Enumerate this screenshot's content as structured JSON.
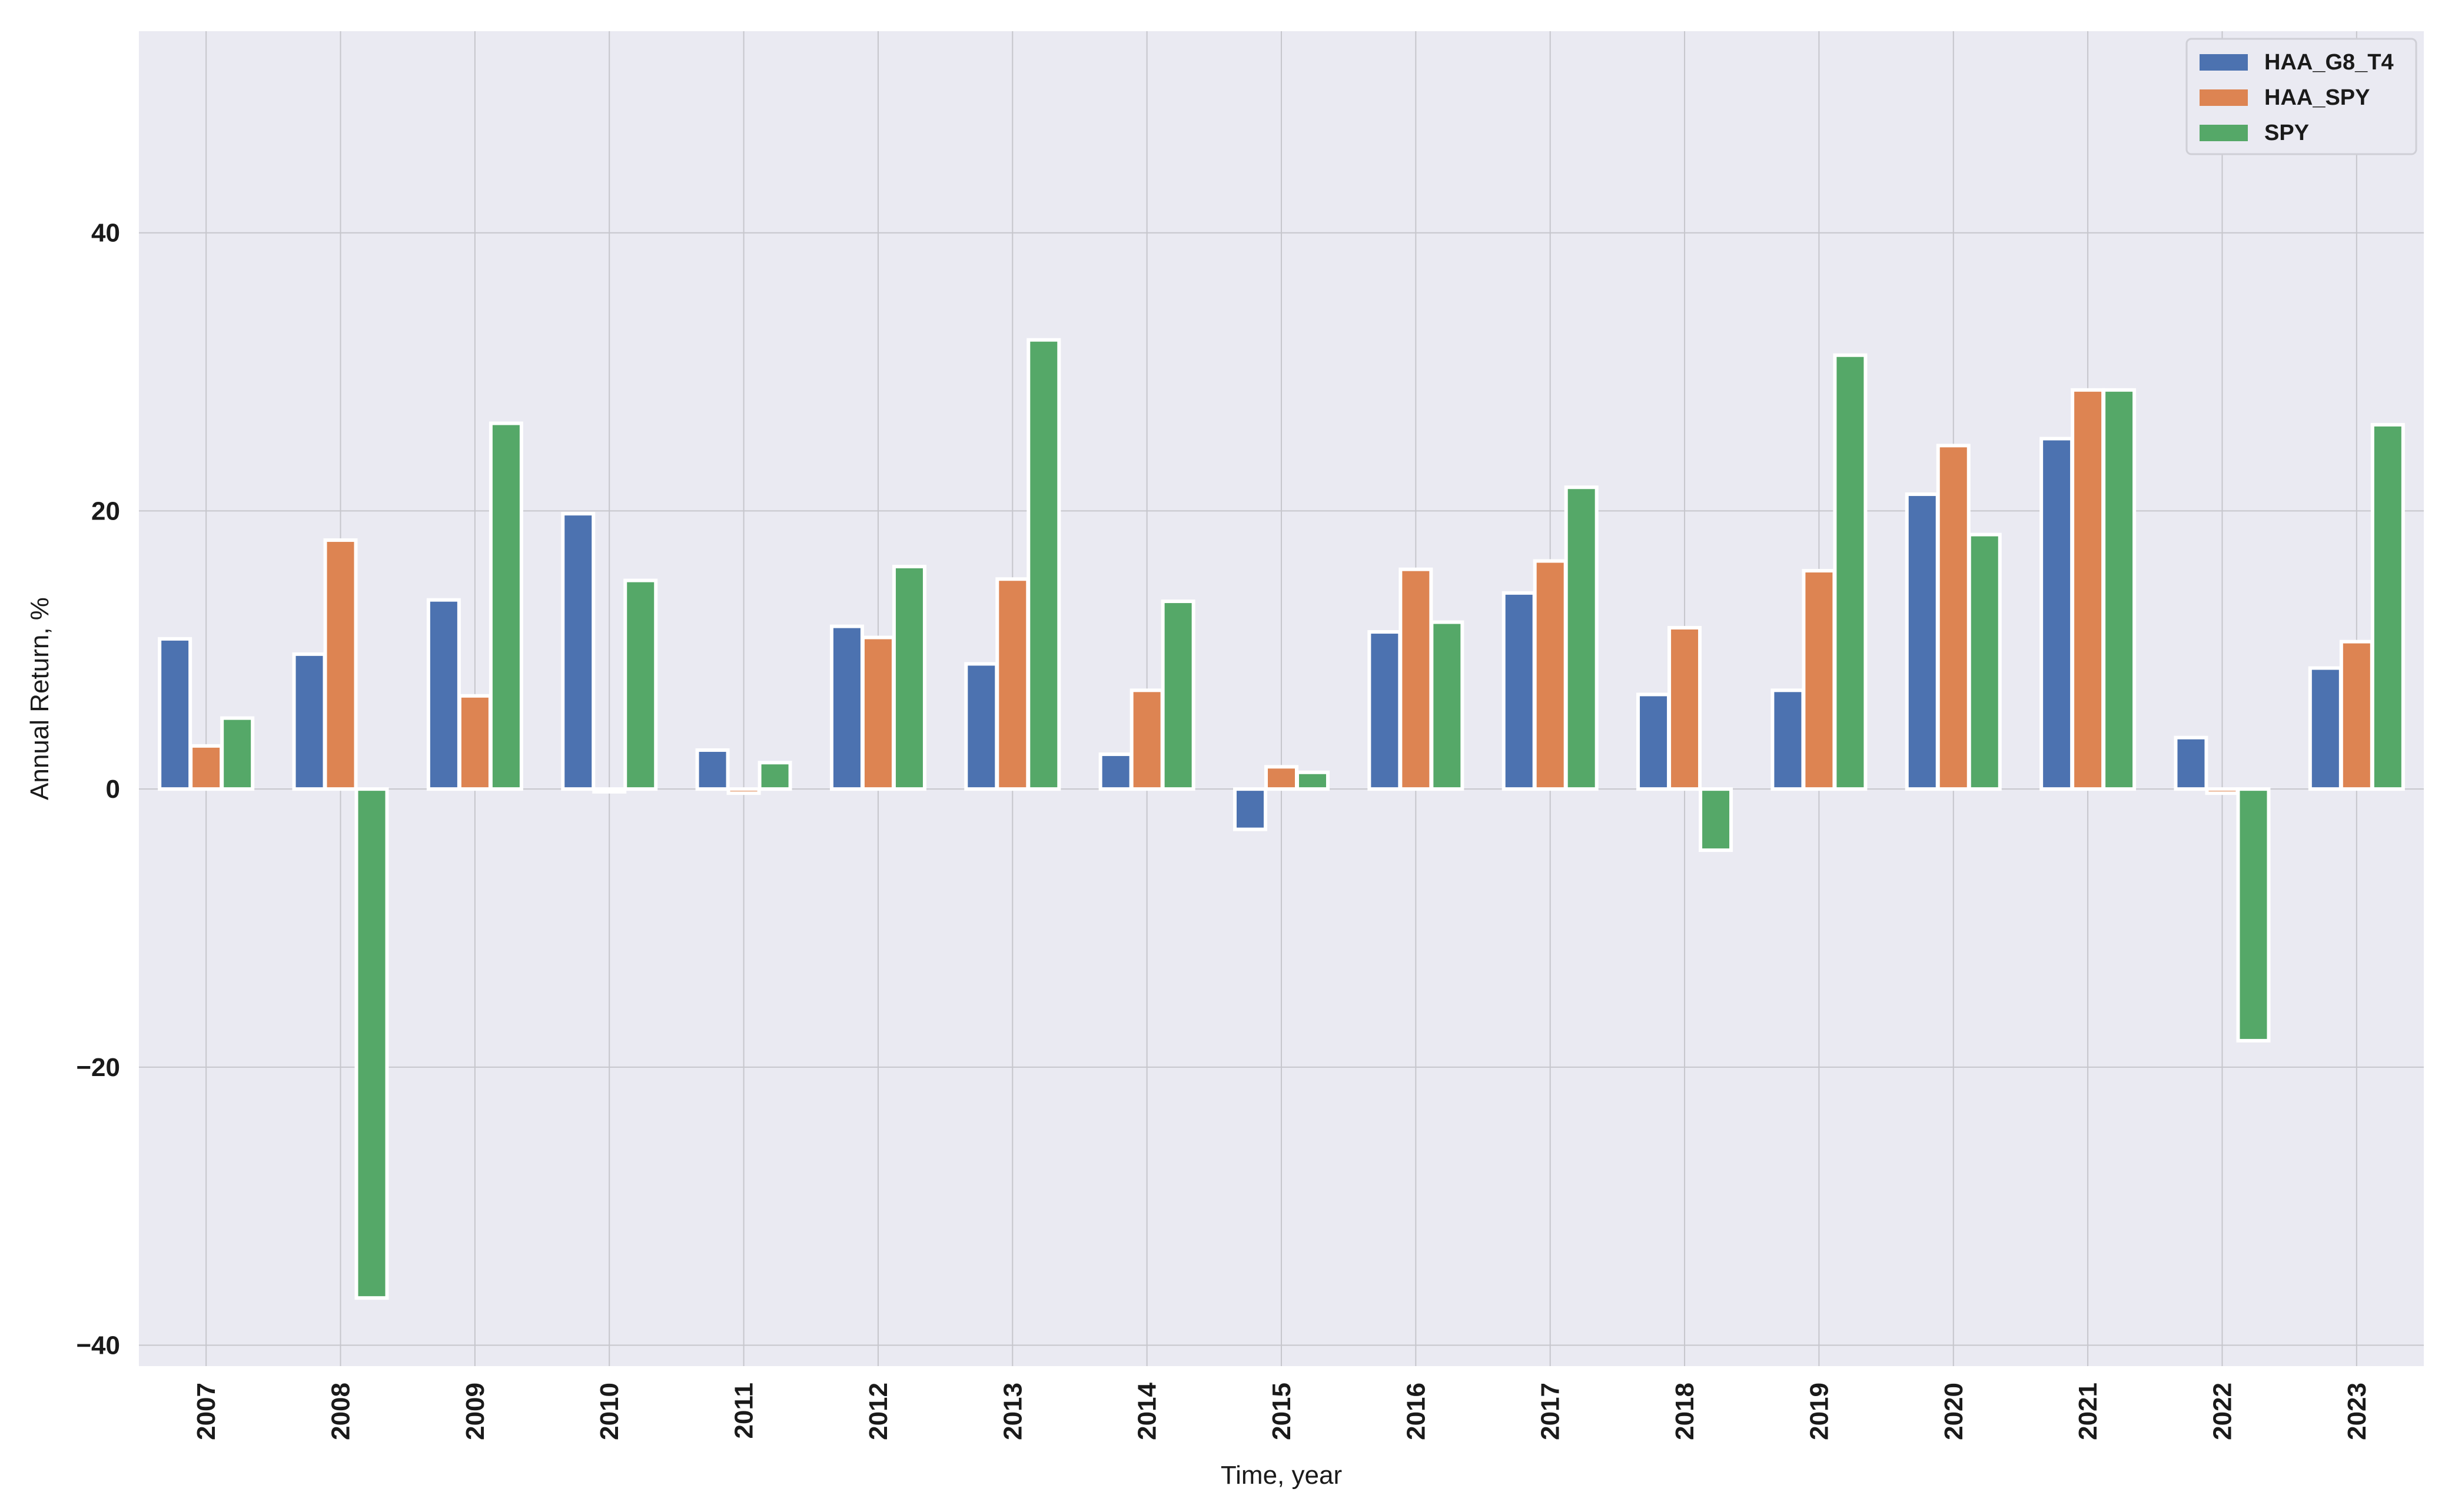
{
  "chart_data": {
    "type": "bar",
    "title": "",
    "xlabel": "Time, year",
    "ylabel": "Annual Return, %",
    "ylim": [
      -41.5,
      54.5
    ],
    "yticks": [
      -40,
      -20,
      0,
      20,
      40
    ],
    "ytick_labels": [
      "−40",
      "−20",
      "0",
      "20",
      "40"
    ],
    "grid": true,
    "legend_position": "top-right",
    "categories": [
      "2007",
      "2008",
      "2009",
      "2010",
      "2011",
      "2012",
      "2013",
      "2014",
      "2015",
      "2016",
      "2017",
      "2018",
      "2019",
      "2020",
      "2021",
      "2022",
      "2023"
    ],
    "series": [
      {
        "name": "HAA_G8_T4",
        "color": "#4c72b0",
        "values": [
          10.8,
          9.7,
          13.6,
          19.8,
          2.8,
          11.7,
          9.0,
          2.5,
          -2.9,
          11.3,
          14.1,
          6.8,
          7.1,
          21.2,
          25.2,
          3.7,
          8.7
        ]
      },
      {
        "name": "HAA_SPY",
        "color": "#dd8452",
        "values": [
          3.1,
          17.9,
          6.7,
          -0.2,
          -0.3,
          10.9,
          15.1,
          7.1,
          1.6,
          15.8,
          16.4,
          11.6,
          15.7,
          24.7,
          28.7,
          -0.3,
          10.6
        ]
      },
      {
        "name": "SPY",
        "color": "#55a868",
        "values": [
          5.1,
          -36.6,
          26.3,
          15.0,
          1.9,
          16.0,
          32.3,
          13.5,
          1.2,
          12.0,
          21.7,
          -4.4,
          31.2,
          18.3,
          28.7,
          -18.1,
          26.2
        ]
      }
    ]
  }
}
